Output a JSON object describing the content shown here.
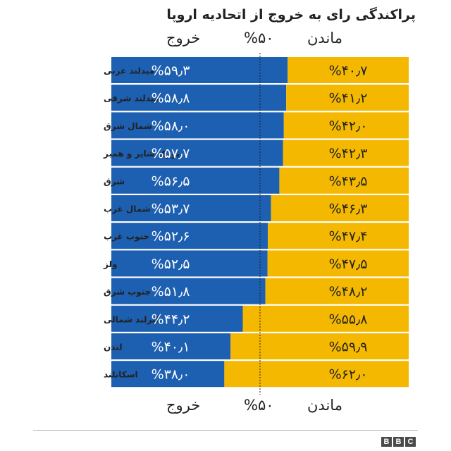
{
  "title": "پراکندگی رای به خروج از اتحادیه اروپا",
  "headers": {
    "leave": "خروج",
    "fifty": "%۵۰",
    "remain": "ماندن"
  },
  "logo": [
    "B",
    "B",
    "C"
  ],
  "colors": {
    "leave": "#1d5fb0",
    "remain": "#f5b800",
    "midline": "#222222"
  },
  "chart_data": {
    "type": "bar",
    "stacked": true,
    "orientation": "horizontal",
    "xlim": [
      0,
      100
    ],
    "midline": 50,
    "categories": [
      "میدلند غربی",
      "میدلند شرقی",
      "شمال شرق",
      "یورک شایر و همبر",
      "شرق",
      "شمال غرب",
      "جنوب غرب",
      "ولز",
      "جنوب شرق",
      "ایرلند شمالی",
      "لندن",
      "اسکاتلند"
    ],
    "series": [
      {
        "name": "خروج",
        "values": [
          59.3,
          58.8,
          58.0,
          57.7,
          56.5,
          53.7,
          52.6,
          52.5,
          51.8,
          44.2,
          40.1,
          38.0
        ],
        "labels": [
          "%۵۹٫۳",
          "%۵۸٫۸",
          "%۵۸٫۰",
          "%۵۷٫۷",
          "%۵۶٫۵",
          "%۵۳٫۷",
          "%۵۲٫۶",
          "%۵۲٫۵",
          "%۵۱٫۸",
          "%۴۴٫۲",
          "%۴۰٫۱",
          "%۳۸٫۰"
        ]
      },
      {
        "name": "ماندن",
        "values": [
          40.7,
          41.2,
          42.0,
          42.3,
          43.5,
          46.3,
          47.4,
          47.5,
          48.2,
          55.8,
          59.9,
          62.0
        ],
        "labels": [
          "%۴۰٫۷",
          "%۴۱٫۲",
          "%۴۲٫۰",
          "%۴۲٫۳",
          "%۴۳٫۵",
          "%۴۶٫۳",
          "%۴۷٫۴",
          "%۴۷٫۵",
          "%۴۸٫۲",
          "%۵۵٫۸",
          "%۵۹٫۹",
          "%۶۲٫۰"
        ]
      }
    ]
  }
}
